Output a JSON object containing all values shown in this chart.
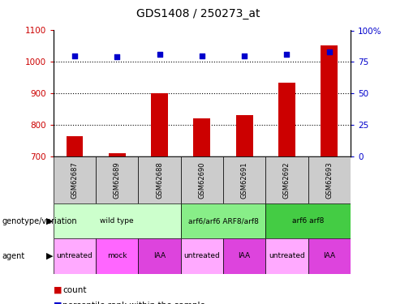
{
  "title": "GDS1408 / 250273_at",
  "samples": [
    "GSM62687",
    "GSM62689",
    "GSM62688",
    "GSM62690",
    "GSM62691",
    "GSM62692",
    "GSM62693"
  ],
  "bar_values": [
    765,
    710,
    900,
    820,
    832,
    935,
    1052
  ],
  "scatter_right_values": [
    80,
    79,
    81,
    80,
    80,
    81,
    83
  ],
  "ylim_left": [
    700,
    1100
  ],
  "ylim_right": [
    0,
    100
  ],
  "yticks_left": [
    700,
    800,
    900,
    1000,
    1100
  ],
  "yticks_right": [
    0,
    25,
    50,
    75,
    100
  ],
  "bar_color": "#cc0000",
  "scatter_color": "#0000cc",
  "genotype_row": [
    {
      "label": "wild type",
      "start": 0,
      "end": 3,
      "color": "#ccffcc"
    },
    {
      "label": "arf6/arf6 ARF8/arf8",
      "start": 3,
      "end": 5,
      "color": "#88ee88"
    },
    {
      "label": "arf6 arf8",
      "start": 5,
      "end": 7,
      "color": "#44cc44"
    }
  ],
  "agent_row": [
    {
      "label": "untreated",
      "start": 0,
      "end": 1,
      "color": "#ffaaff"
    },
    {
      "label": "mock",
      "start": 1,
      "end": 2,
      "color": "#ff66ff"
    },
    {
      "label": "IAA",
      "start": 2,
      "end": 3,
      "color": "#dd44dd"
    },
    {
      "label": "untreated",
      "start": 3,
      "end": 4,
      "color": "#ffaaff"
    },
    {
      "label": "IAA",
      "start": 4,
      "end": 5,
      "color": "#dd44dd"
    },
    {
      "label": "untreated",
      "start": 5,
      "end": 6,
      "color": "#ffaaff"
    },
    {
      "label": "IAA",
      "start": 6,
      "end": 7,
      "color": "#dd44dd"
    }
  ],
  "legend_count_color": "#cc0000",
  "legend_pct_color": "#0000cc",
  "sample_box_color": "#cccccc",
  "bar_width": 0.4
}
